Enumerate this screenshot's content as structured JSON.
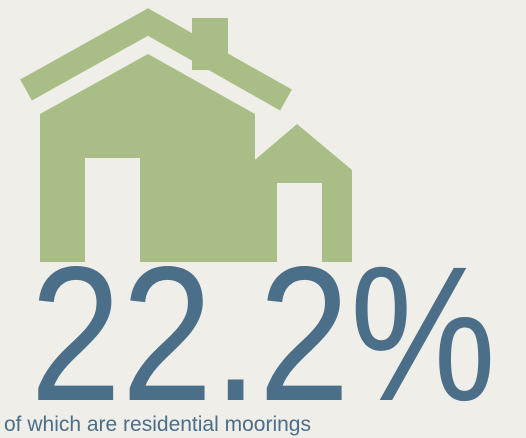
{
  "headline": {
    "value": "22.2%",
    "caption": "of which are residential moorings"
  }
}
